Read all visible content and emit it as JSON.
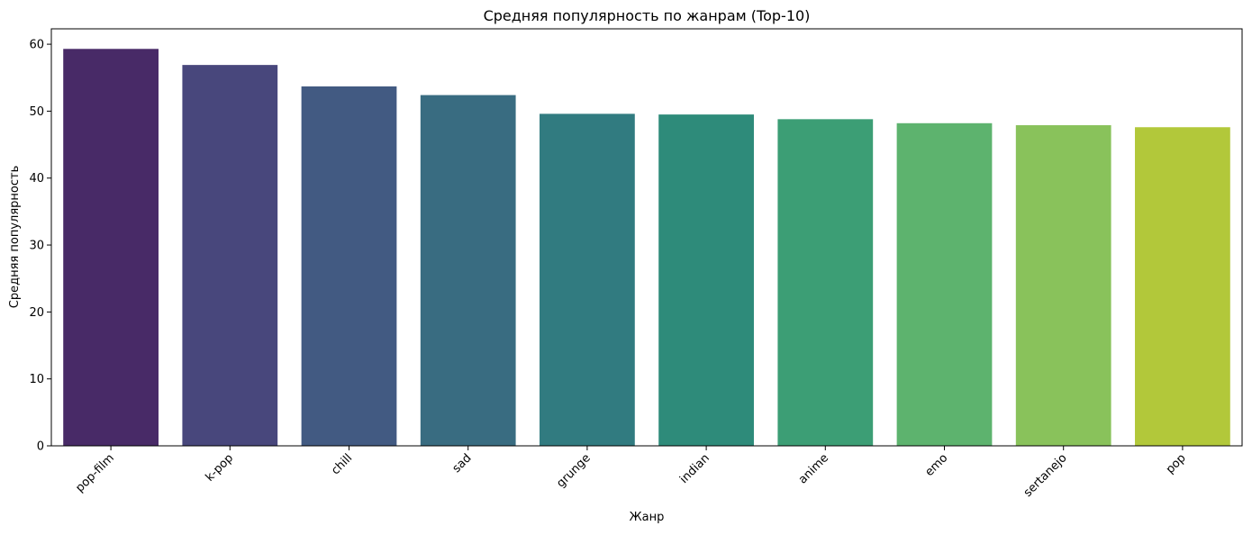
{
  "chart_data": {
    "type": "bar",
    "title": "Средняя популярность по жанрам (Top-10)",
    "xlabel": "Жанр",
    "ylabel": "Средняя популярность",
    "categories": [
      "pop-film",
      "k-pop",
      "chill",
      "sad",
      "grunge",
      "indian",
      "anime",
      "emo",
      "sertanejo",
      "pop"
    ],
    "values": [
      59.3,
      56.9,
      53.7,
      52.4,
      49.6,
      49.5,
      48.8,
      48.2,
      47.9,
      47.6
    ],
    "colors": [
      "#482a67",
      "#48477c",
      "#425a82",
      "#396c81",
      "#317b80",
      "#2e8b7a",
      "#3c9e75",
      "#5db36e",
      "#89c25b",
      "#b2c83a"
    ],
    "ylim": [
      0,
      62.3
    ],
    "yticks": [
      0,
      10,
      20,
      30,
      40,
      50,
      60
    ],
    "grid": false,
    "legend": "none"
  }
}
